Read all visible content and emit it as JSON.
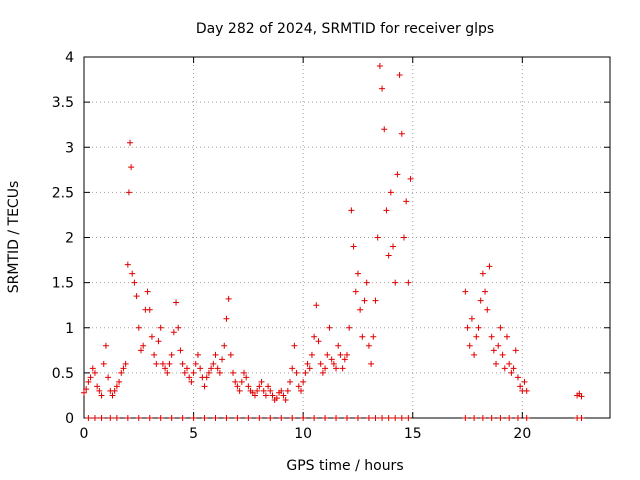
{
  "chart_data": {
    "type": "scatter",
    "title": "Day 282 of 2024, SRMTID for receiver glps",
    "xlabel": "GPS time / hours",
    "ylabel": "SRMTID / TECUs",
    "xlim": [
      0,
      24
    ],
    "ylim": [
      0,
      4
    ],
    "xticks": [
      0,
      5,
      10,
      15,
      20
    ],
    "xtick_labels": [
      "0",
      "5",
      "10",
      "15",
      "20"
    ],
    "yticks": [
      0,
      0.5,
      1,
      1.5,
      2,
      2.5,
      3,
      3.5,
      4
    ],
    "ytick_labels": [
      "0",
      "0.5",
      "1",
      "1.5",
      "2",
      "2.5",
      "3",
      "3.5",
      "4"
    ],
    "grid": true,
    "marker": "+",
    "color": "#e00000",
    "series": [
      {
        "name": "SRMTID",
        "x": [
          0.0,
          0.1,
          0.2,
          0.3,
          0.4,
          0.5,
          0.6,
          0.7,
          0.8,
          0.9,
          1.0,
          1.1,
          1.2,
          1.3,
          1.4,
          1.5,
          1.6,
          1.7,
          1.8,
          1.9,
          2.0,
          2.05,
          2.1,
          2.15,
          2.2,
          2.3,
          2.4,
          2.5,
          2.6,
          2.7,
          2.8,
          2.9,
          3.0,
          3.1,
          3.2,
          3.3,
          3.4,
          3.5,
          3.6,
          3.7,
          3.8,
          3.9,
          4.0,
          4.1,
          4.2,
          4.3,
          4.4,
          4.5,
          4.6,
          4.7,
          4.8,
          4.9,
          5.0,
          5.1,
          5.2,
          5.3,
          5.4,
          5.5,
          5.6,
          5.7,
          5.8,
          5.9,
          6.0,
          6.1,
          6.2,
          6.3,
          6.4,
          6.5,
          6.6,
          6.7,
          6.8,
          6.9,
          7.0,
          7.1,
          7.2,
          7.3,
          7.4,
          7.5,
          7.6,
          7.7,
          7.8,
          7.9,
          8.0,
          8.1,
          8.2,
          8.3,
          8.4,
          8.5,
          8.6,
          8.7,
          8.8,
          8.9,
          9.0,
          9.1,
          9.2,
          9.3,
          9.4,
          9.5,
          9.6,
          9.7,
          9.8,
          9.9,
          10.0,
          10.1,
          10.2,
          10.3,
          10.4,
          10.5,
          10.6,
          10.7,
          10.8,
          10.9,
          11.0,
          11.1,
          11.2,
          11.3,
          11.4,
          11.5,
          11.6,
          11.7,
          11.8,
          11.9,
          12.0,
          12.1,
          12.2,
          12.3,
          12.4,
          12.5,
          12.6,
          12.7,
          12.8,
          12.9,
          13.0,
          13.1,
          13.2,
          13.3,
          13.4,
          13.5,
          13.6,
          13.7,
          13.8,
          13.9,
          14.0,
          14.1,
          14.2,
          14.3,
          14.4,
          14.5,
          14.6,
          14.7,
          14.8,
          14.9,
          17.4,
          17.5,
          17.6,
          17.7,
          17.8,
          17.9,
          18.0,
          18.1,
          18.2,
          18.3,
          18.4,
          18.5,
          18.6,
          18.7,
          18.8,
          18.9,
          19.0,
          19.1,
          19.2,
          19.3,
          19.4,
          19.5,
          19.6,
          19.7,
          19.8,
          19.9,
          20.0,
          20.1,
          20.2,
          22.5,
          22.6,
          22.7
        ],
        "y": [
          0.28,
          0.32,
          0.4,
          0.45,
          0.55,
          0.5,
          0.35,
          0.3,
          0.25,
          0.6,
          0.8,
          0.45,
          0.3,
          0.25,
          0.3,
          0.35,
          0.4,
          0.5,
          0.55,
          0.6,
          1.7,
          2.5,
          3.05,
          2.78,
          1.6,
          1.5,
          1.35,
          1.0,
          0.75,
          0.8,
          1.2,
          1.4,
          1.2,
          0.9,
          0.7,
          0.6,
          0.85,
          1.0,
          0.6,
          0.55,
          0.5,
          0.6,
          0.7,
          0.95,
          1.28,
          1.0,
          0.75,
          0.6,
          0.5,
          0.55,
          0.45,
          0.4,
          0.5,
          0.6,
          0.7,
          0.55,
          0.45,
          0.35,
          0.45,
          0.5,
          0.55,
          0.6,
          0.7,
          0.55,
          0.5,
          0.65,
          0.8,
          1.1,
          1.32,
          0.7,
          0.5,
          0.4,
          0.35,
          0.3,
          0.4,
          0.5,
          0.45,
          0.35,
          0.3,
          0.28,
          0.25,
          0.3,
          0.35,
          0.4,
          0.3,
          0.25,
          0.35,
          0.3,
          0.25,
          0.2,
          0.22,
          0.28,
          0.3,
          0.25,
          0.2,
          0.3,
          0.4,
          0.55,
          0.8,
          0.5,
          0.35,
          0.3,
          0.4,
          0.5,
          0.6,
          0.55,
          0.7,
          0.9,
          1.25,
          0.85,
          0.6,
          0.5,
          0.55,
          0.7,
          1.0,
          0.65,
          0.6,
          0.55,
          0.8,
          0.7,
          0.55,
          0.65,
          0.7,
          1.0,
          2.3,
          1.9,
          1.4,
          1.6,
          1.2,
          0.9,
          1.3,
          1.5,
          0.8,
          0.6,
          0.9,
          1.3,
          2.0,
          3.9,
          3.65,
          3.2,
          2.3,
          1.8,
          2.5,
          1.9,
          1.5,
          2.7,
          3.8,
          3.15,
          2.0,
          2.4,
          1.5,
          2.65,
          1.4,
          1.0,
          0.8,
          1.1,
          0.7,
          0.9,
          1.0,
          1.3,
          1.6,
          1.4,
          1.2,
          1.68,
          0.9,
          0.75,
          0.6,
          0.8,
          1.0,
          0.7,
          0.55,
          0.9,
          0.6,
          0.5,
          0.55,
          0.75,
          0.45,
          0.35,
          0.3,
          0.4,
          0.3,
          0.25,
          0.27,
          0.24
        ]
      }
    ],
    "zero_markers_x": [
      0.2,
      0.5,
      0.8,
      1.2,
      1.5,
      2.0,
      2.5,
      3.0,
      3.5,
      4.0,
      4.5,
      5.0,
      5.5,
      6.0,
      6.5,
      7.0,
      7.5,
      8.0,
      8.5,
      9.0,
      9.5,
      10.0,
      10.5,
      11.0,
      11.5,
      12.0,
      12.5,
      13.0,
      13.3,
      13.6,
      13.9,
      14.2,
      14.5,
      14.8,
      17.4,
      17.8,
      18.2,
      18.6,
      19.0,
      19.4,
      19.8,
      20.2,
      22.5,
      22.7
    ]
  }
}
